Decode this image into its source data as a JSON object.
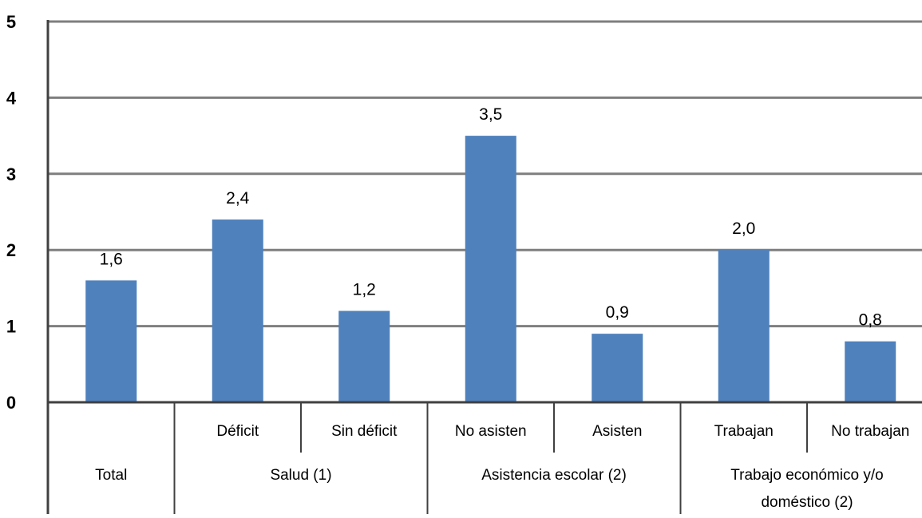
{
  "chart_data": {
    "type": "bar",
    "title": "",
    "xlabel": "",
    "ylabel": "",
    "ylim": [
      0,
      5
    ],
    "yticks": [
      "0",
      "1",
      "2",
      "3",
      "4",
      "5"
    ],
    "grid": true,
    "legend": "none",
    "colors": {
      "bar": "#4f81bd",
      "grid": "#7f7f7f",
      "axis": "#404040"
    },
    "categories": [
      "Total",
      "Déficit",
      "Sin déficit",
      "No asisten",
      "Asisten",
      "Trabajan",
      "No trabajan"
    ],
    "values": [
      1.6,
      2.4,
      1.2,
      3.5,
      0.9,
      2.0,
      0.8
    ],
    "data_labels": [
      "1,6",
      "2,4",
      "1,2",
      "3,5",
      "0,9",
      "2,0",
      "0,8"
    ],
    "groups": [
      {
        "label": "Total",
        "categories": [
          "Total"
        ]
      },
      {
        "label": "Salud (1)",
        "categories": [
          "Déficit",
          "Sin déficit"
        ]
      },
      {
        "label": "Asistencia escolar (2)",
        "categories": [
          "No asisten",
          "Asisten"
        ]
      },
      {
        "label": [
          "Trabajo económico y/o",
          "doméstico (2)"
        ],
        "categories": [
          "Trabajan",
          "No trabajan"
        ]
      }
    ]
  }
}
